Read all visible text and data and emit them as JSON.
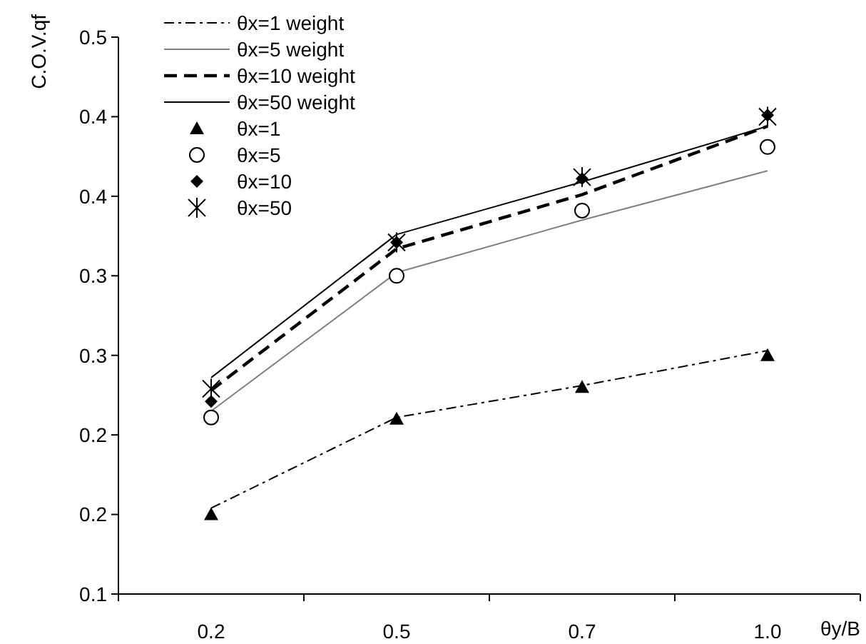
{
  "chart_data": {
    "type": "line",
    "xlabel": "θy/B",
    "ylabel": "C.O.V.qf",
    "categories": [
      "0.2",
      "0.5",
      "0.7",
      "1.0"
    ],
    "ylim": [
      0.1,
      0.45
    ],
    "yticks": [
      {
        "value": 0.1,
        "label": "0.1"
      },
      {
        "value": 0.15,
        "label": "0.2"
      },
      {
        "value": 0.2,
        "label": "0.2"
      },
      {
        "value": 0.25,
        "label": "0.3"
      },
      {
        "value": 0.3,
        "label": "0.3"
      },
      {
        "value": 0.35,
        "label": "0.4"
      },
      {
        "value": 0.4,
        "label": "0.4"
      },
      {
        "value": 0.45,
        "label": "0.5"
      }
    ],
    "grid": false,
    "legend": "top left",
    "series": [
      {
        "name": "θx=1 weight",
        "color": "#000000",
        "line_style": "dashdot",
        "marker": "none",
        "values": [
          0.154,
          0.211,
          0.231,
          0.253
        ]
      },
      {
        "name": "θx=5 weight",
        "color": "#808080",
        "line_style": "solid",
        "marker": "none",
        "values": [
          0.215,
          0.302,
          0.335,
          0.366
        ]
      },
      {
        "name": "θx=10 weight",
        "color": "#000000",
        "line_style": "dashed",
        "marker": "none",
        "values": [
          0.228,
          0.317,
          0.351,
          0.394
        ]
      },
      {
        "name": "θx=50 weight",
        "color": "#000000",
        "line_style": "solid",
        "marker": "none",
        "values": [
          0.236,
          0.326,
          0.359,
          0.394
        ]
      },
      {
        "name": "θx=1",
        "type": "scatter",
        "color": "#000000",
        "marker": "triangle",
        "values": [
          0.15,
          0.21,
          0.23,
          0.25
        ]
      },
      {
        "name": "θx=5",
        "type": "scatter",
        "color": "#000000",
        "marker": "circle",
        "values": [
          0.211,
          0.3,
          0.341,
          0.381
        ]
      },
      {
        "name": "θx=10",
        "type": "scatter",
        "color": "#000000",
        "marker": "diamond",
        "values": [
          0.221,
          0.321,
          0.361,
          0.401
        ]
      },
      {
        "name": "θx=50",
        "type": "scatter",
        "color": "#000000",
        "marker": "cross",
        "values": [
          0.229,
          0.321,
          0.362,
          0.4
        ]
      }
    ]
  }
}
